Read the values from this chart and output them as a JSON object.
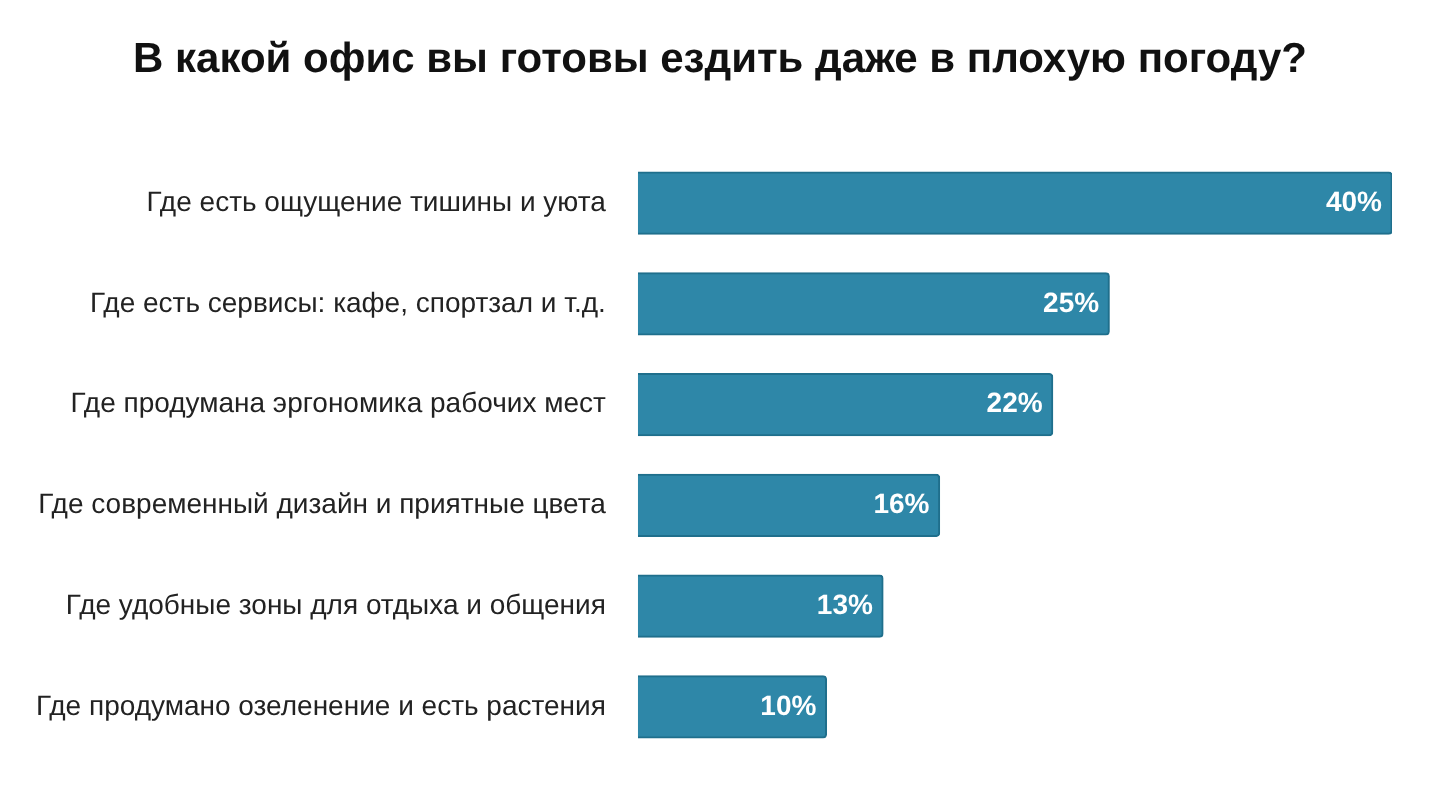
{
  "chart_data": {
    "type": "bar",
    "orientation": "horizontal",
    "title": "В какой офис вы готовы ездить даже в плохую погоду?",
    "categories": [
      "Где есть ощущение тишины и уюта",
      "Где есть сервисы: кафе, спортзал и т.д.",
      "Где продумана эргономика рабочих мест",
      "Где современный дизайн и приятные цвета",
      "Где удобные зоны для отдыха и общения",
      "Где продумано озеленение и есть растения"
    ],
    "values": [
      40,
      25,
      22,
      16,
      13,
      10
    ],
    "value_labels": [
      "40%",
      "25%",
      "22%",
      "16%",
      "13%",
      "10%"
    ],
    "color": "#2e87a8",
    "legend": false
  }
}
